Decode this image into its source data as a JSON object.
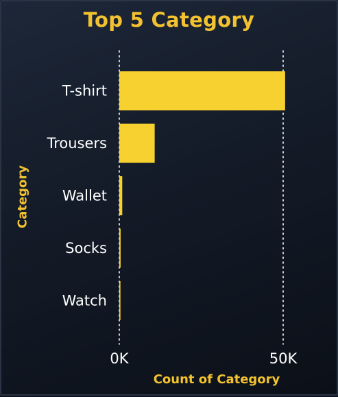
{
  "chart_data": {
    "type": "bar",
    "orientation": "horizontal",
    "title": "Top 5 Category",
    "xlabel": "Count of Category",
    "ylabel": "Category",
    "categories": [
      "T-shirt",
      "Trousers",
      "Wallet",
      "Socks",
      "Watch"
    ],
    "values": [
      50600,
      10800,
      900,
      400,
      350
    ],
    "xlim": [
      0,
      50000
    ],
    "xticks": [
      "0K",
      "50K"
    ],
    "grid": "vertical dotted at ticks",
    "legend": "none"
  },
  "colors": {
    "bar": "#f7d12f",
    "accent": "#f2c230",
    "text": "#ffffff",
    "grid": "#ffffff"
  }
}
